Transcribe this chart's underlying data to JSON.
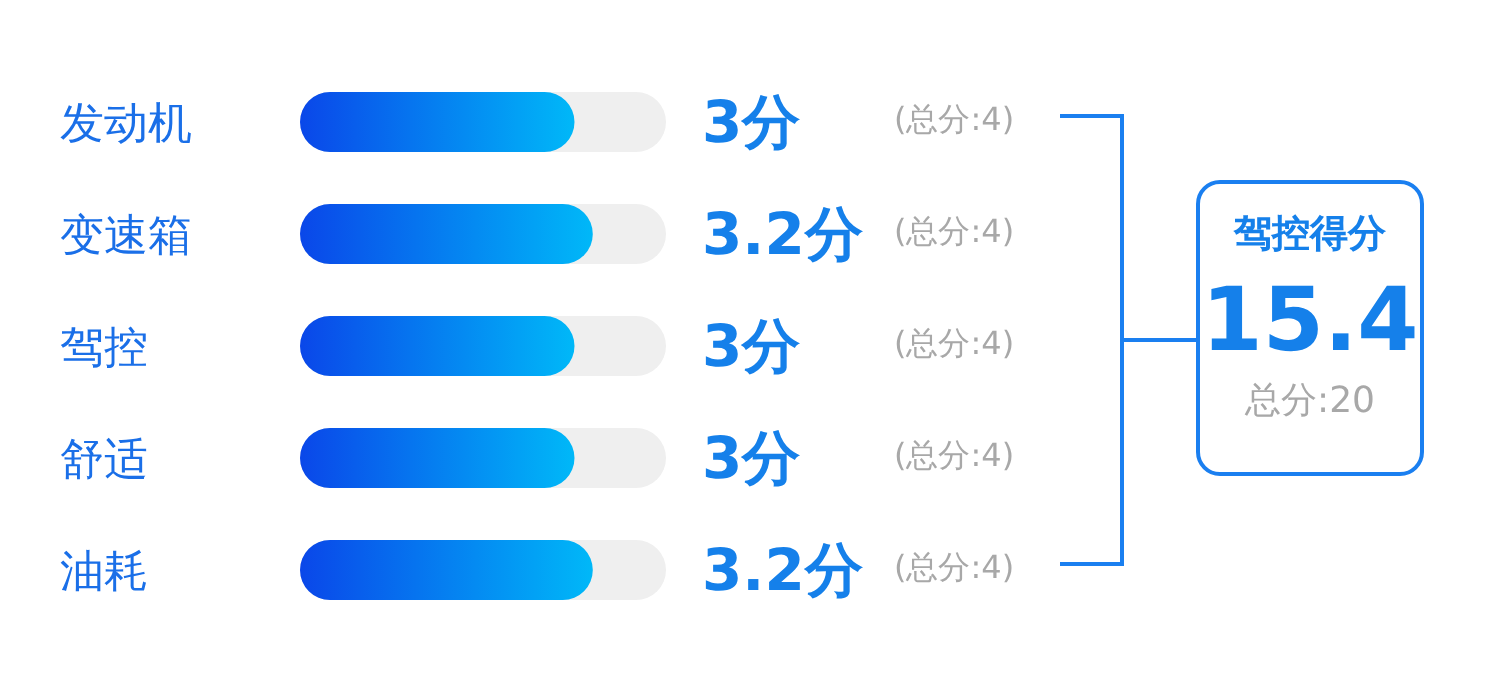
{
  "chart_data": {
    "type": "bar",
    "orientation": "horizontal",
    "categories": [
      "发动机",
      "变速箱",
      "驾控",
      "舒适",
      "油耗"
    ],
    "values": [
      3,
      3.2,
      3,
      3,
      3.2
    ],
    "color": "#0a47e9",
    "xlim": [
      0,
      4
    ],
    "tick_labels": "y",
    "value_labels": [
      "3分",
      "3.2分",
      "3分",
      "3分",
      "3.2分"
    ],
    "annotations": [
      "(总分:4)",
      "(总分:4)",
      "(总分:4)",
      "(总分:4)",
      "(总分:4)",
      "驾控得分",
      "15.4",
      "总分:20"
    ]
  }
}
